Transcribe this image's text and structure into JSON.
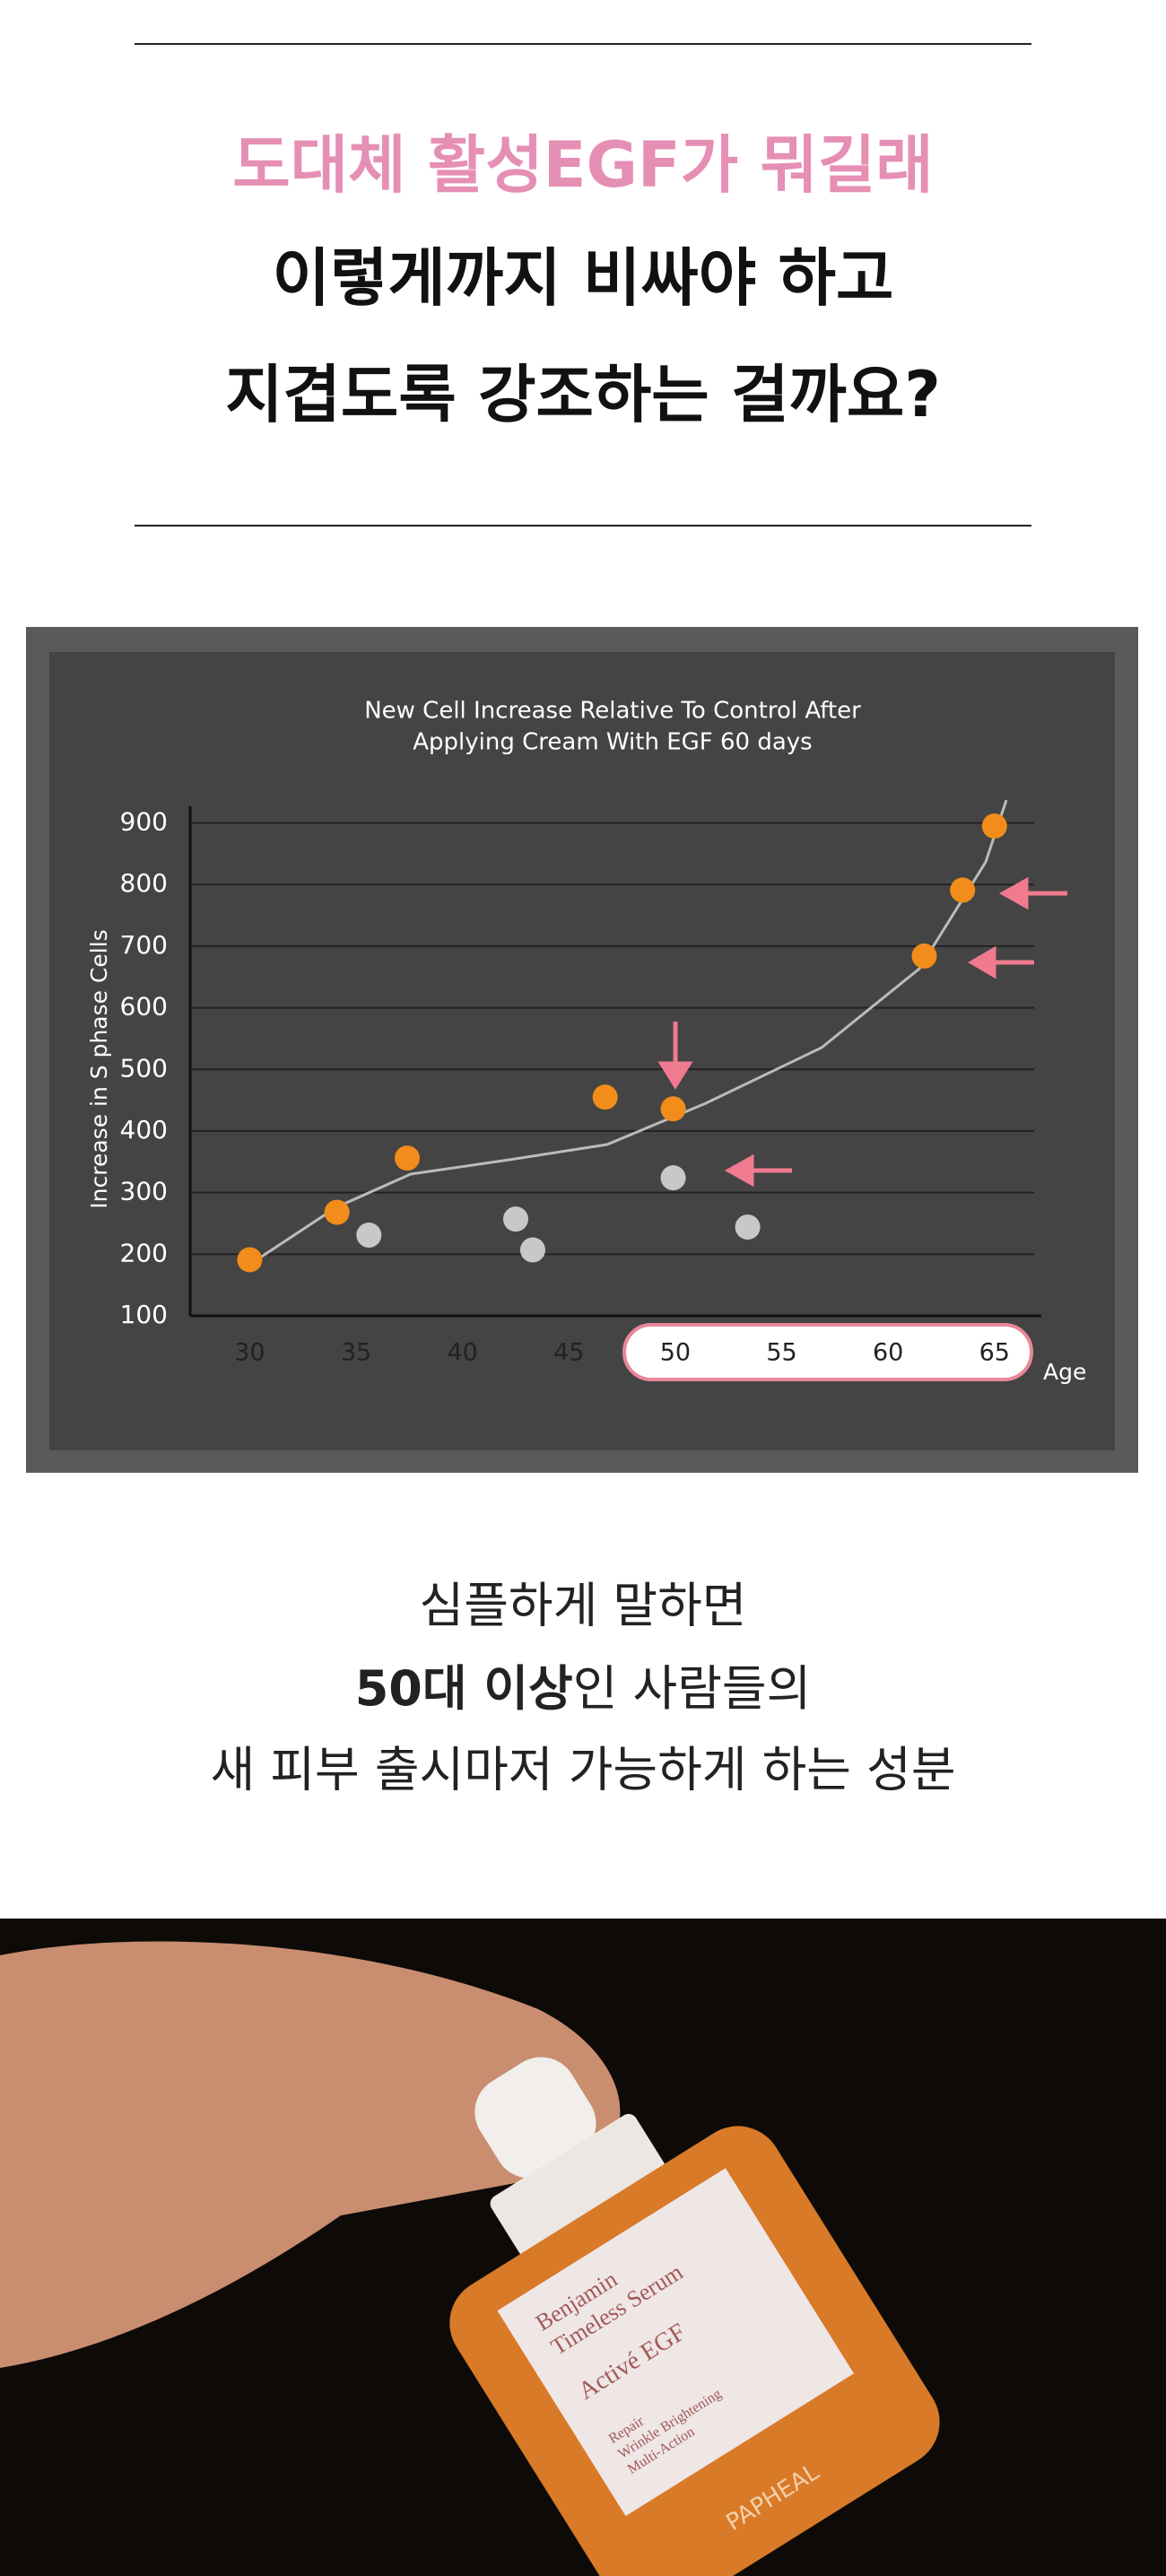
{
  "header": {
    "lines": [
      "도대체 활성EGF가 뭐길래",
      "이렇게까지 비싸야 하고",
      "지겹도록 강조하는 걸까요?"
    ]
  },
  "chart_data": {
    "type": "scatter",
    "title": [
      "New Cell Increase Relative To Control After",
      "Applying Cream With EGF 60 days"
    ],
    "y_label": "Increase in S phase Cells",
    "x_label": "Age",
    "xlim": [
      27.2,
      67.2
    ],
    "ylim": [
      100,
      927
    ],
    "xticks": [
      30,
      35,
      40,
      45,
      50,
      55,
      60,
      65
    ],
    "yticks": [
      100,
      200,
      300,
      400,
      500,
      600,
      700,
      800,
      900
    ],
    "grid": true,
    "series": [
      {
        "color": "#f28c1a",
        "x": [
          30,
          34.1,
          37.4,
          46.7,
          49.9,
          61.7,
          63.5,
          65
        ],
        "values": [
          191,
          268,
          356,
          455,
          436,
          684,
          791,
          895
        ]
      },
      {
        "color": "#c8c8c8",
        "x": [
          35.6,
          42.5,
          43.3,
          49.9,
          53.4
        ],
        "values": [
          231,
          257,
          207,
          324,
          244
        ]
      }
    ]
  },
  "body": {
    "lines": [
      [
        "심플하게 말하면"
      ],
      [
        "50대 이상",
        "인 사람들의"
      ],
      [
        "새 피부 출시마저 가능하게 하는 성분"
      ]
    ]
  },
  "product": {
    "label": [
      "Benjamin",
      "Timeless Serum",
      "Activé EGF",
      "Repair",
      "Wrinkle Brightening",
      "Multi-Action"
    ],
    "brand": "PAPHEAL"
  }
}
